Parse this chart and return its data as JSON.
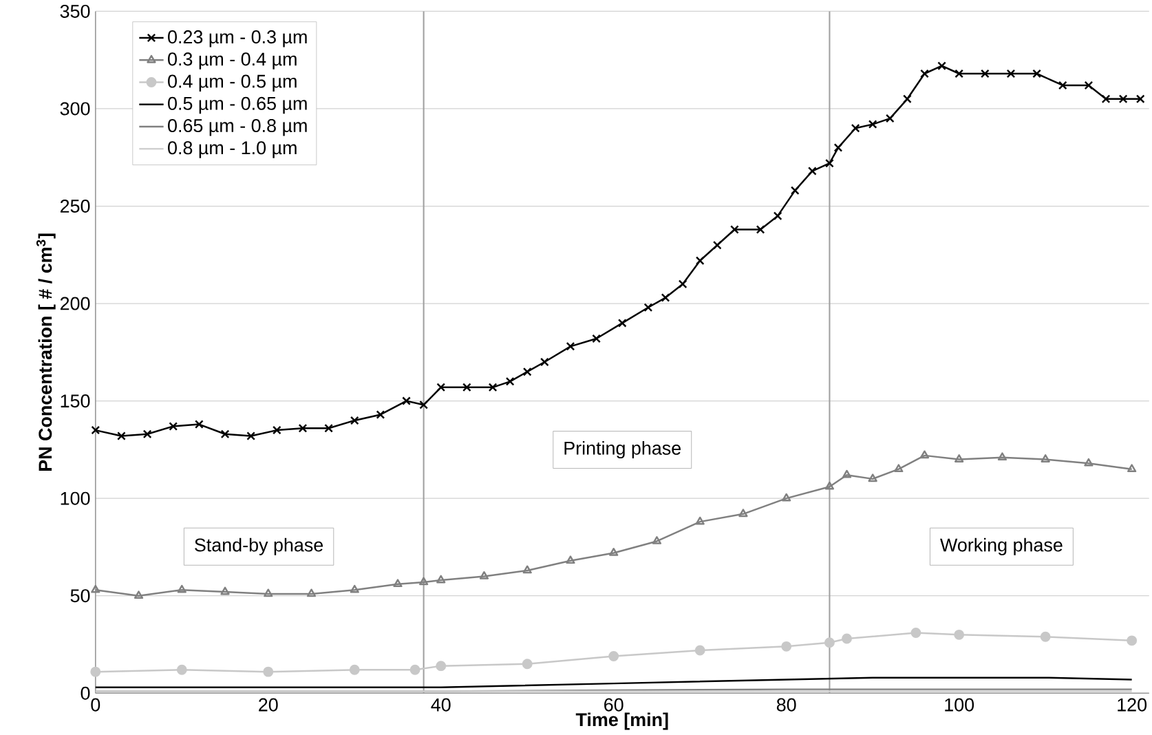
{
  "chart_data": {
    "type": "line",
    "xlabel": "Time [min]",
    "ylabel": "PN Concentration [ # / cm$^{3}$]",
    "xlim": [
      0,
      122
    ],
    "ylim": [
      0,
      350
    ],
    "xticks": [
      0,
      20,
      40,
      60,
      80,
      100,
      120
    ],
    "yticks": [
      0,
      50,
      100,
      150,
      200,
      250,
      300,
      350
    ],
    "grid": "y",
    "legend": "top left",
    "series": [
      {
        "name": "0.23 µm - 0.3 µm",
        "color": "#000000",
        "marker": "cross",
        "x": [
          0,
          3,
          6,
          9,
          12,
          15,
          18,
          21,
          24,
          27,
          30,
          33,
          36,
          38,
          40,
          43,
          46,
          48,
          50,
          52,
          55,
          58,
          61,
          64,
          66,
          68,
          70,
          72,
          74,
          77,
          79,
          81,
          83,
          85,
          86,
          88,
          90,
          92,
          94,
          96,
          98,
          100,
          103,
          106,
          109,
          112,
          115,
          117,
          119,
          121
        ],
        "values": [
          135,
          132,
          133,
          137,
          138,
          133,
          132,
          135,
          136,
          136,
          140,
          143,
          150,
          148,
          157,
          157,
          157,
          160,
          165,
          170,
          178,
          182,
          190,
          198,
          203,
          210,
          222,
          230,
          238,
          238,
          245,
          258,
          268,
          272,
          280,
          290,
          292,
          295,
          305,
          318,
          322,
          318,
          318,
          318,
          318,
          312,
          312,
          305,
          305,
          305
        ]
      },
      {
        "name": "0.3 µm - 0.4 µm",
        "color": "#808080",
        "marker": "triangle",
        "x": [
          0,
          5,
          10,
          15,
          20,
          25,
          30,
          35,
          38,
          40,
          45,
          50,
          55,
          60,
          65,
          70,
          75,
          80,
          85,
          87,
          90,
          93,
          96,
          100,
          105,
          110,
          115,
          120
        ],
        "values": [
          53,
          50,
          53,
          52,
          51,
          51,
          53,
          56,
          57,
          58,
          60,
          63,
          68,
          72,
          78,
          88,
          92,
          100,
          106,
          112,
          110,
          115,
          122,
          120,
          121,
          120,
          118,
          115
        ]
      },
      {
        "name": "0.4 µm - 0.5 µm",
        "color": "#c8c8c8",
        "marker": "circle",
        "x": [
          0,
          10,
          20,
          30,
          37,
          40,
          50,
          60,
          70,
          80,
          85,
          87,
          95,
          100,
          110,
          120
        ],
        "values": [
          11,
          12,
          11,
          12,
          12,
          14,
          15,
          19,
          22,
          24,
          26,
          28,
          31,
          30,
          29,
          27
        ]
      },
      {
        "name": "0.5 µm - 0.65 µm",
        "color": "#000000",
        "marker": "none",
        "x": [
          0,
          20,
          40,
          60,
          80,
          90,
          100,
          110,
          120
        ],
        "values": [
          3,
          3,
          3,
          5,
          7,
          8,
          8,
          8,
          7
        ]
      },
      {
        "name": "0.65 µm - 0.8 µm",
        "color": "#808080",
        "marker": "none",
        "x": [
          0,
          40,
          80,
          120
        ],
        "values": [
          1,
          1,
          2,
          2
        ]
      },
      {
        "name": "0.8 µm - 1.0 µm",
        "color": "#d0d0d0",
        "marker": "none",
        "x": [
          0,
          60,
          120
        ],
        "values": [
          1,
          1,
          1
        ]
      }
    ],
    "ref_lines": [
      {
        "axis": "x",
        "value": 38,
        "color": "#a0a0a0"
      },
      {
        "axis": "x",
        "value": 85,
        "color": "#a0a0a0"
      }
    ],
    "annotations": [
      "Stand-by phase",
      "Printing phase",
      "Working phase"
    ]
  }
}
